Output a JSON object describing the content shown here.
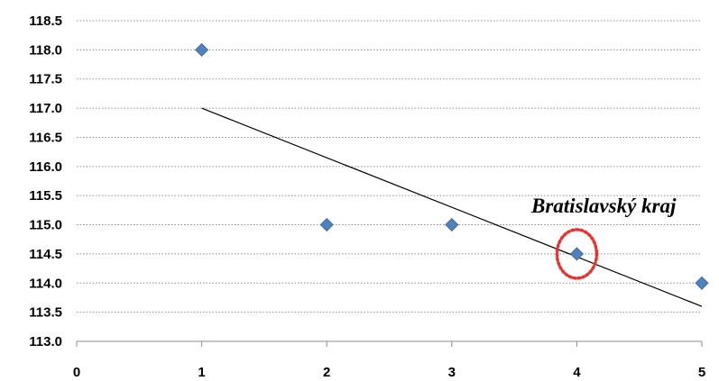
{
  "chart_data": {
    "type": "scatter",
    "title": "",
    "xlabel": "",
    "ylabel": "",
    "xlim": [
      0,
      5
    ],
    "ylim": [
      113.0,
      118.5
    ],
    "x_ticks": [
      "0",
      "1",
      "2",
      "3",
      "4",
      "5"
    ],
    "y_ticks": [
      "113.0",
      "113.5",
      "114.0",
      "114.5",
      "115.0",
      "115.5",
      "116.0",
      "116.5",
      "117.0",
      "117.5",
      "118.0",
      "118.5"
    ],
    "grid": "horizontal-dotted",
    "legend": "none",
    "series": [
      {
        "marker": "diamond",
        "color": "#4f81bd",
        "points": [
          {
            "x": 1,
            "y": 118.0
          },
          {
            "x": 2,
            "y": 115.0
          },
          {
            "x": 3,
            "y": 115.0
          },
          {
            "x": 4,
            "y": 114.5
          },
          {
            "x": 5,
            "y": 114.0
          }
        ]
      }
    ],
    "trendline": {
      "color": "#000000",
      "start": {
        "x": 1,
        "y": 117.0
      },
      "end": {
        "x": 5,
        "y": 113.6
      }
    },
    "annotation": {
      "text": "Bratislavský kraj",
      "target": {
        "x": 4,
        "y": 114.5
      },
      "highlight_color": "#e8322d"
    }
  }
}
